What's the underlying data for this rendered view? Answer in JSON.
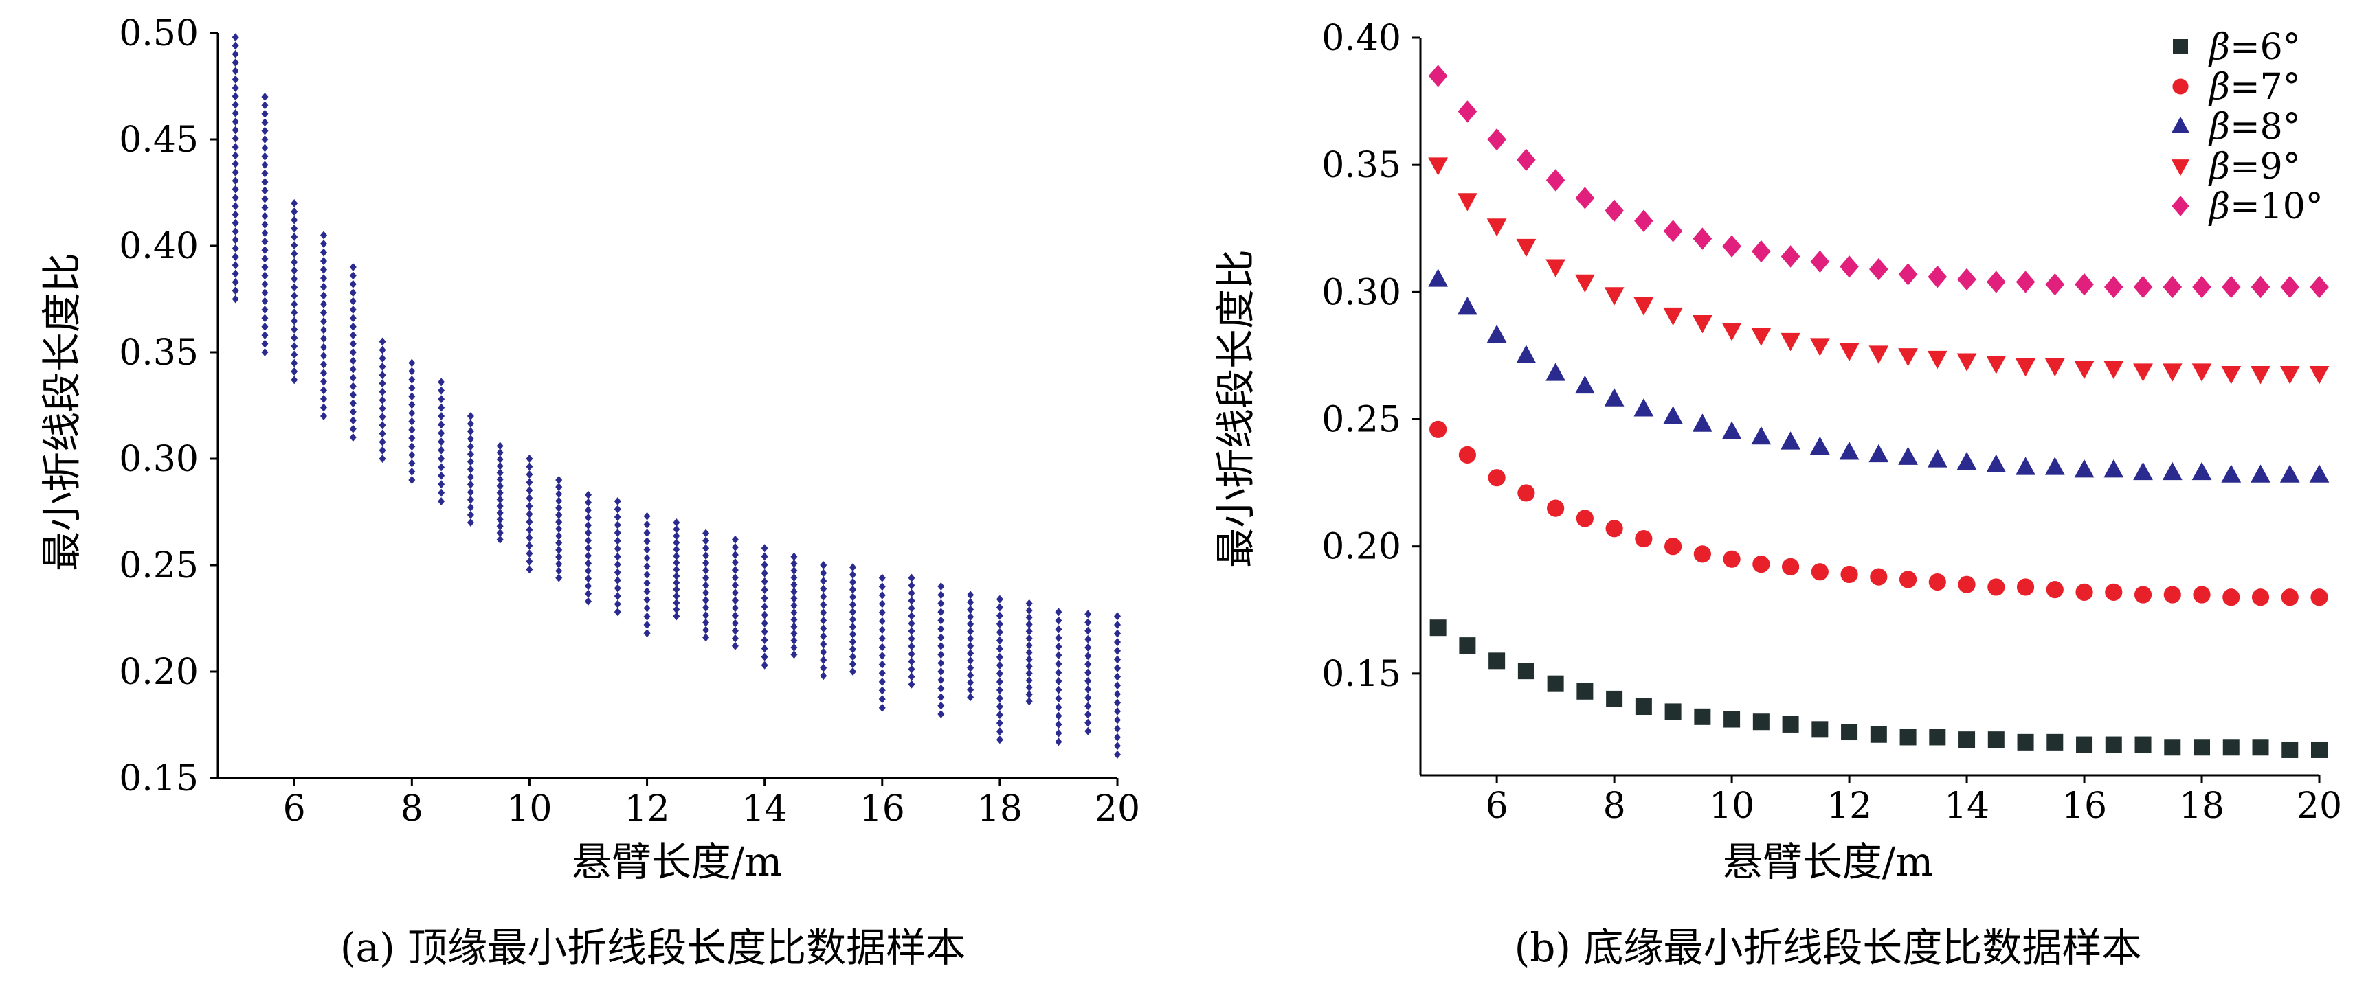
{
  "figure": {
    "panel_a": {
      "caption": "(a) 顶缘最小折线段长度比数据样本"
    },
    "panel_b": {
      "caption": "(b) 底缘最小折线段长度比数据样本"
    }
  },
  "chart_data": [
    {
      "type": "scatter",
      "panel": "a",
      "title": "",
      "xlabel": "悬臂长度/m",
      "ylabel": "最小折线段长度比",
      "xlim": [
        4.7,
        20
      ],
      "ylim": [
        0.15,
        0.5
      ],
      "xticks": [
        6,
        8,
        10,
        12,
        14,
        16,
        18,
        20
      ],
      "yticks": [
        0.15,
        0.2,
        0.25,
        0.3,
        0.35,
        0.4,
        0.45,
        0.5
      ],
      "grid": false,
      "legend": "none",
      "marker_color": "#2b2b8f",
      "series": [
        {
          "x": [
            5,
            5.5,
            6,
            6.5,
            7,
            7.5,
            8,
            8.5,
            9,
            9.5,
            10,
            10.5,
            11,
            11.5,
            12,
            12.5,
            13,
            13.5,
            14,
            14.5,
            15,
            15.5,
            16,
            16.5,
            17,
            17.5,
            18,
            18.5,
            19,
            19.5,
            20
          ],
          "y_min": [
            0.375,
            0.35,
            0.337,
            0.32,
            0.31,
            0.3,
            0.29,
            0.28,
            0.27,
            0.262,
            0.248,
            0.244,
            0.233,
            0.228,
            0.218,
            0.226,
            0.216,
            0.212,
            0.203,
            0.208,
            0.198,
            0.2,
            0.183,
            0.194,
            0.18,
            0.188,
            0.168,
            0.186,
            0.167,
            0.172,
            0.161
          ],
          "y_max": [
            0.498,
            0.47,
            0.42,
            0.405,
            0.39,
            0.355,
            0.345,
            0.336,
            0.32,
            0.306,
            0.3,
            0.29,
            0.283,
            0.28,
            0.273,
            0.27,
            0.265,
            0.262,
            0.258,
            0.254,
            0.25,
            0.249,
            0.244,
            0.244,
            0.24,
            0.236,
            0.234,
            0.232,
            0.228,
            0.227,
            0.226
          ]
        }
      ]
    },
    {
      "type": "scatter",
      "panel": "b",
      "title": "",
      "xlabel": "悬臂长度/m",
      "ylabel": "最小折线段长度比",
      "xlim": [
        4.7,
        20
      ],
      "ylim": [
        0.11,
        0.4
      ],
      "xticks": [
        6,
        8,
        10,
        12,
        14,
        16,
        18,
        20
      ],
      "yticks": [
        0.15,
        0.2,
        0.25,
        0.3,
        0.35,
        0.4
      ],
      "grid": false,
      "legend": "top-right",
      "x": [
        5,
        5.5,
        6,
        6.5,
        7,
        7.5,
        8,
        8.5,
        9,
        9.5,
        10,
        10.5,
        11,
        11.5,
        12,
        12.5,
        13,
        13.5,
        14,
        14.5,
        15,
        15.5,
        16,
        16.5,
        17,
        17.5,
        18,
        18.5,
        19,
        19.5,
        20
      ],
      "series": [
        {
          "legend_prefix": "β",
          "legend_suffix": "=6°",
          "marker": "square",
          "color": "#222f2f",
          "values": [
            0.168,
            0.161,
            0.155,
            0.151,
            0.146,
            0.143,
            0.14,
            0.137,
            0.135,
            0.133,
            0.132,
            0.131,
            0.13,
            0.128,
            0.127,
            0.126,
            0.125,
            0.125,
            0.124,
            0.124,
            0.123,
            0.123,
            0.122,
            0.122,
            0.122,
            0.121,
            0.121,
            0.121,
            0.121,
            0.12,
            0.12
          ]
        },
        {
          "legend_prefix": "β",
          "legend_suffix": "=7°",
          "marker": "circle",
          "color": "#e8202a",
          "values": [
            0.246,
            0.236,
            0.227,
            0.221,
            0.215,
            0.211,
            0.207,
            0.203,
            0.2,
            0.197,
            0.195,
            0.193,
            0.192,
            0.19,
            0.189,
            0.188,
            0.187,
            0.186,
            0.185,
            0.184,
            0.184,
            0.183,
            0.182,
            0.182,
            0.181,
            0.181,
            0.181,
            0.18,
            0.18,
            0.18,
            0.18
          ]
        },
        {
          "legend_prefix": "β",
          "legend_suffix": "=8°",
          "marker": "triangle-up",
          "color": "#2b2b8f",
          "values": [
            0.305,
            0.294,
            0.283,
            0.275,
            0.268,
            0.263,
            0.258,
            0.254,
            0.251,
            0.248,
            0.245,
            0.243,
            0.241,
            0.239,
            0.237,
            0.236,
            0.235,
            0.234,
            0.233,
            0.232,
            0.231,
            0.231,
            0.23,
            0.23,
            0.229,
            0.229,
            0.229,
            0.228,
            0.228,
            0.228,
            0.228
          ]
        },
        {
          "legend_prefix": "β",
          "legend_suffix": "=9°",
          "marker": "triangle-down",
          "color": "#e8202a",
          "values": [
            0.35,
            0.336,
            0.326,
            0.318,
            0.31,
            0.304,
            0.299,
            0.295,
            0.291,
            0.288,
            0.285,
            0.283,
            0.281,
            0.279,
            0.277,
            0.276,
            0.275,
            0.274,
            0.273,
            0.272,
            0.271,
            0.271,
            0.27,
            0.27,
            0.269,
            0.269,
            0.269,
            0.268,
            0.268,
            0.268,
            0.268
          ]
        },
        {
          "legend_prefix": "β",
          "legend_suffix": "=10°",
          "marker": "diamond",
          "color": "#e0207c",
          "values": [
            0.385,
            0.371,
            0.36,
            0.352,
            0.344,
            0.337,
            0.332,
            0.328,
            0.324,
            0.321,
            0.318,
            0.316,
            0.314,
            0.312,
            0.31,
            0.309,
            0.307,
            0.306,
            0.305,
            0.304,
            0.304,
            0.303,
            0.303,
            0.302,
            0.302,
            0.302,
            0.302,
            0.302,
            0.302,
            0.302,
            0.302
          ]
        }
      ]
    }
  ]
}
